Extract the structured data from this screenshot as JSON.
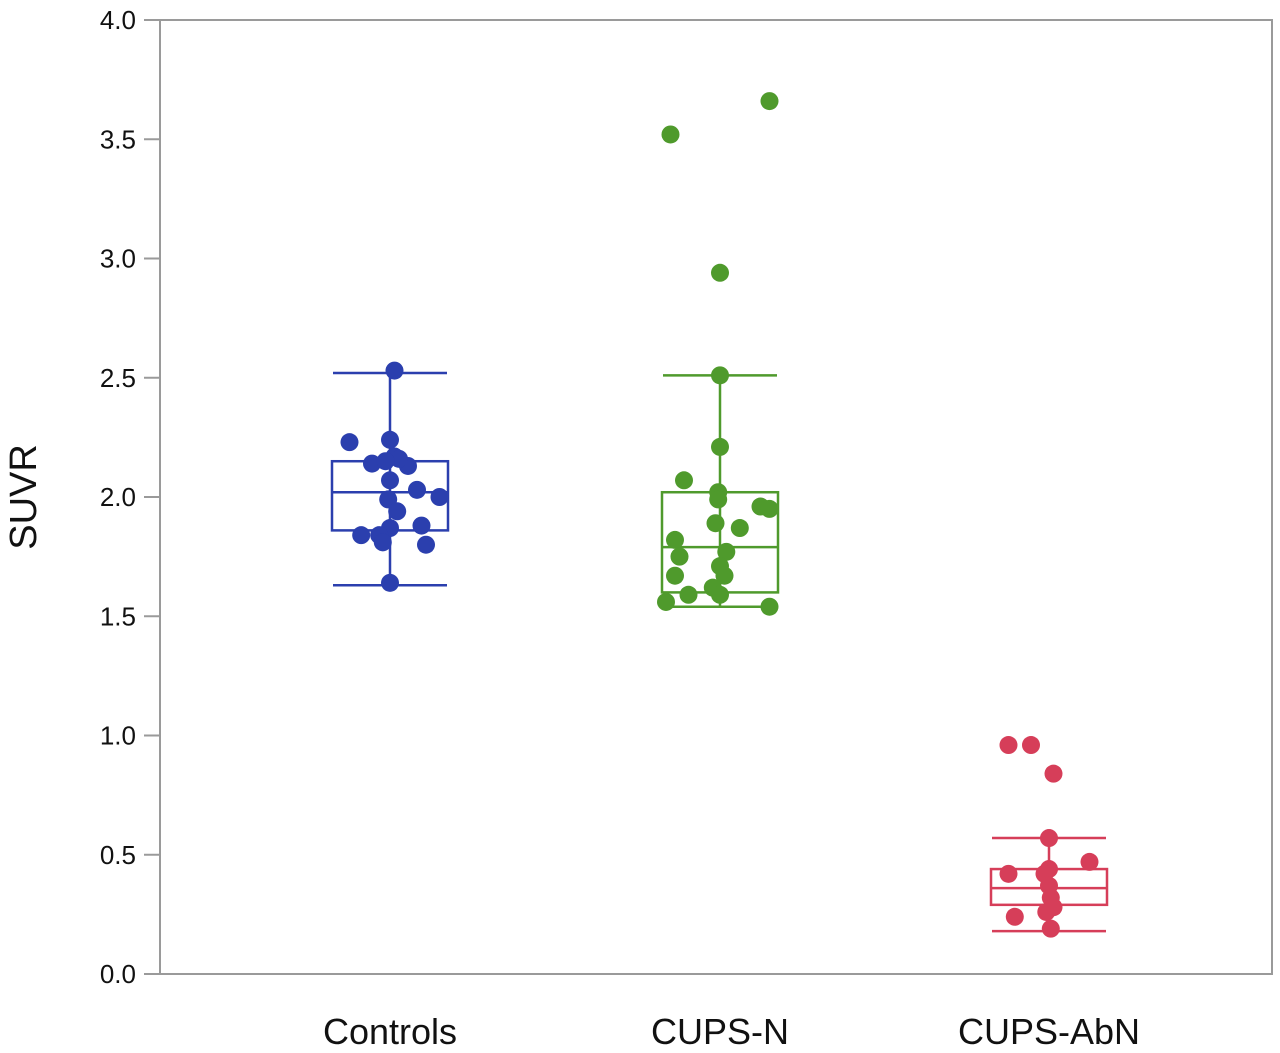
{
  "chart_data": {
    "type": "box-scatter",
    "title": "",
    "xlabel": "",
    "ylabel": "SUVR",
    "ylim": [
      0,
      4
    ],
    "yticks": [
      0.0,
      0.5,
      1.0,
      1.5,
      2.0,
      2.5,
      3.0,
      3.5,
      4.0
    ],
    "ytick_labels": [
      "0.0",
      "0.5",
      "1.0",
      "1.5",
      "2.0",
      "2.5",
      "3.0",
      "3.5",
      "4.0"
    ],
    "grid": false,
    "categories": [
      "Controls",
      "CUPS-N",
      "CUPS-AbN"
    ],
    "series": [
      {
        "color": "#2b3fae",
        "box": {
          "whisker_low": 1.63,
          "q1": 1.86,
          "median": 2.02,
          "q3": 2.15,
          "whisker_high": 2.52
        },
        "points": [
          {
            "j": 0.05,
            "y": 2.53
          },
          {
            "j": -0.45,
            "y": 2.23
          },
          {
            "j": 0.0,
            "y": 2.24
          },
          {
            "j": 0.05,
            "y": 2.17
          },
          {
            "j": -0.2,
            "y": 2.14
          },
          {
            "j": 0.2,
            "y": 2.13
          },
          {
            "j": 0.1,
            "y": 2.16
          },
          {
            "j": -0.05,
            "y": 2.15
          },
          {
            "j": 0.0,
            "y": 2.07
          },
          {
            "j": 0.3,
            "y": 2.03
          },
          {
            "j": 0.55,
            "y": 2.0
          },
          {
            "j": -0.02,
            "y": 1.99
          },
          {
            "j": 0.08,
            "y": 1.94
          },
          {
            "j": 0.35,
            "y": 1.88
          },
          {
            "j": 0.0,
            "y": 1.87
          },
          {
            "j": -0.12,
            "y": 1.84
          },
          {
            "j": -0.32,
            "y": 1.84
          },
          {
            "j": -0.08,
            "y": 1.81
          },
          {
            "j": 0.4,
            "y": 1.8
          },
          {
            "j": 0.0,
            "y": 1.64
          }
        ]
      },
      {
        "color": "#4f9a2c",
        "box": {
          "whisker_low": 1.54,
          "q1": 1.6,
          "median": 1.79,
          "q3": 2.02,
          "whisker_high": 2.51
        },
        "points": [
          {
            "j": 0.55,
            "y": 3.66
          },
          {
            "j": -0.55,
            "y": 3.52
          },
          {
            "j": 0.0,
            "y": 2.94
          },
          {
            "j": 0.0,
            "y": 2.51
          },
          {
            "j": 0.0,
            "y": 2.21
          },
          {
            "j": -0.4,
            "y": 2.07
          },
          {
            "j": -0.02,
            "y": 2.02
          },
          {
            "j": -0.02,
            "y": 1.99
          },
          {
            "j": 0.45,
            "y": 1.96
          },
          {
            "j": 0.55,
            "y": 1.95
          },
          {
            "j": -0.05,
            "y": 1.89
          },
          {
            "j": 0.22,
            "y": 1.87
          },
          {
            "j": -0.5,
            "y": 1.82
          },
          {
            "j": 0.07,
            "y": 1.77
          },
          {
            "j": -0.45,
            "y": 1.75
          },
          {
            "j": 0.0,
            "y": 1.71
          },
          {
            "j": -0.5,
            "y": 1.67
          },
          {
            "j": 0.05,
            "y": 1.67
          },
          {
            "j": -0.08,
            "y": 1.62
          },
          {
            "j": 0.0,
            "y": 1.59
          },
          {
            "j": -0.35,
            "y": 1.59
          },
          {
            "j": -0.6,
            "y": 1.56
          },
          {
            "j": 0.55,
            "y": 1.54
          }
        ]
      },
      {
        "color": "#d63e59",
        "box": {
          "whisker_low": 0.18,
          "q1": 0.29,
          "median": 0.36,
          "q3": 0.44,
          "whisker_high": 0.57
        },
        "points": [
          {
            "j": -0.45,
            "y": 0.96
          },
          {
            "j": -0.2,
            "y": 0.96
          },
          {
            "j": 0.05,
            "y": 0.84
          },
          {
            "j": 0.0,
            "y": 0.57
          },
          {
            "j": 0.45,
            "y": 0.47
          },
          {
            "j": 0.0,
            "y": 0.44
          },
          {
            "j": -0.05,
            "y": 0.42
          },
          {
            "j": -0.45,
            "y": 0.42
          },
          {
            "j": 0.0,
            "y": 0.37
          },
          {
            "j": 0.02,
            "y": 0.32
          },
          {
            "j": 0.05,
            "y": 0.28
          },
          {
            "j": -0.03,
            "y": 0.26
          },
          {
            "j": -0.38,
            "y": 0.24
          },
          {
            "j": 0.02,
            "y": 0.19
          }
        ]
      }
    ]
  }
}
